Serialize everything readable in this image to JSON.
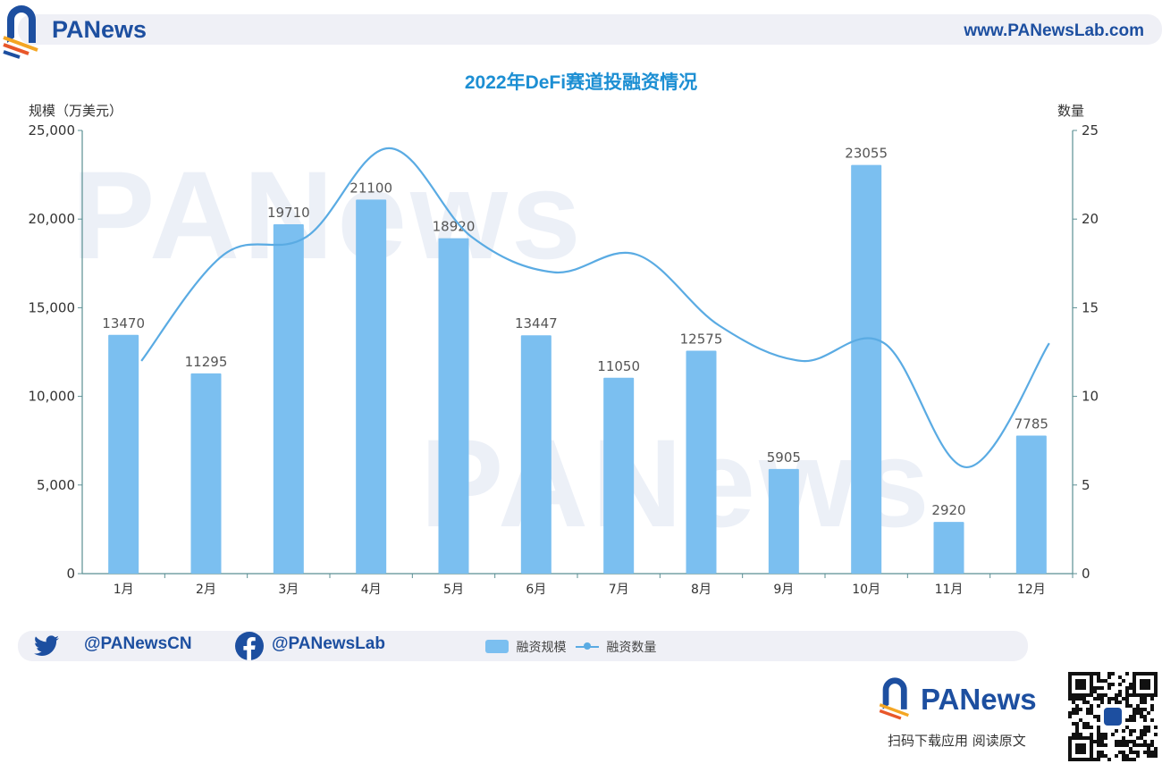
{
  "header": {
    "brand": "PANews",
    "url": "www.PANewsLab.com"
  },
  "watermark": "PANews",
  "footer": {
    "twitter": "@PANewsCN",
    "facebook": "@PANewsLab",
    "cta": "扫码下载应用  阅读原文",
    "brand": "PANews"
  },
  "colors": {
    "bar": "#7bbff0",
    "line": "#5aabe3",
    "title": "#1d8fd3",
    "brand": "#1d4fa0",
    "axis": "#5b8f93"
  },
  "chart_data": {
    "type": "bar+line",
    "title": "2022年DeFi赛道投融资情况",
    "ylabel_left": "规模（万美元）",
    "ylabel_right": "数量",
    "categories": [
      "1月",
      "2月",
      "3月",
      "4月",
      "5月",
      "6月",
      "7月",
      "8月",
      "9月",
      "10月",
      "11月",
      "12月"
    ],
    "ylim_left": [
      0,
      25000
    ],
    "ylim_right": [
      0,
      25
    ],
    "yticks_left": [
      "0",
      "5,000",
      "10,000",
      "15,000",
      "20,000",
      "25,000"
    ],
    "yticks_right": [
      "0",
      "5",
      "10",
      "15",
      "20",
      "25"
    ],
    "grid": false,
    "legend_placement": "bottom",
    "series": [
      {
        "name": "融资规模",
        "type": "bar",
        "axis": "left",
        "values": [
          13470,
          11295,
          19710,
          21100,
          18920,
          13447,
          11050,
          12575,
          5905,
          23055,
          2920,
          7785
        ]
      },
      {
        "name": "融资数量",
        "type": "line",
        "smooth": true,
        "axis": "right",
        "values": [
          12,
          18,
          19,
          24,
          19,
          17,
          18,
          14,
          12,
          13,
          6,
          13
        ]
      }
    ]
  }
}
